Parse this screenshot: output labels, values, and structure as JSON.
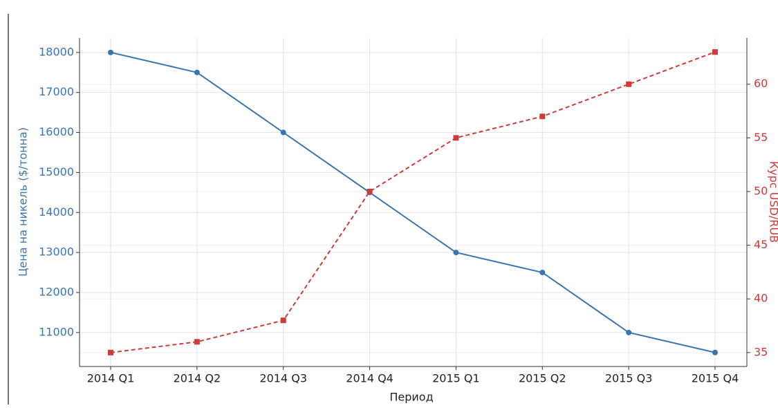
{
  "chart_data": {
    "type": "line",
    "x_label": "Период",
    "y_label": "Цена на никель ($/тонна)",
    "y2_label": "Курс USD/RUB",
    "categories": [
      "2014 Q1",
      "2014 Q2",
      "2014 Q3",
      "2014 Q4",
      "2015 Q1",
      "2015 Q2",
      "2015 Q3",
      "2015 Q4"
    ],
    "series": [
      {
        "name": "Цена на никель",
        "color": "#3b75af",
        "values": [
          18000,
          17500,
          16000,
          14500,
          13000,
          12500,
          11000,
          10500
        ]
      },
      {
        "name": "Курс USD/RUB",
        "color": "#d03a3a",
        "axis": "y2",
        "values": [
          35,
          36,
          38,
          50,
          55,
          57,
          60,
          63
        ]
      }
    ],
    "ylim": [
      10150,
      18360
    ],
    "yticks": [
      11000,
      12000,
      13000,
      14000,
      15000,
      16000,
      17000,
      18000
    ],
    "y2lim": [
      33.7,
      64.3
    ],
    "y2ticks": [
      35,
      40,
      45,
      50,
      55,
      60
    ],
    "grid": true
  }
}
